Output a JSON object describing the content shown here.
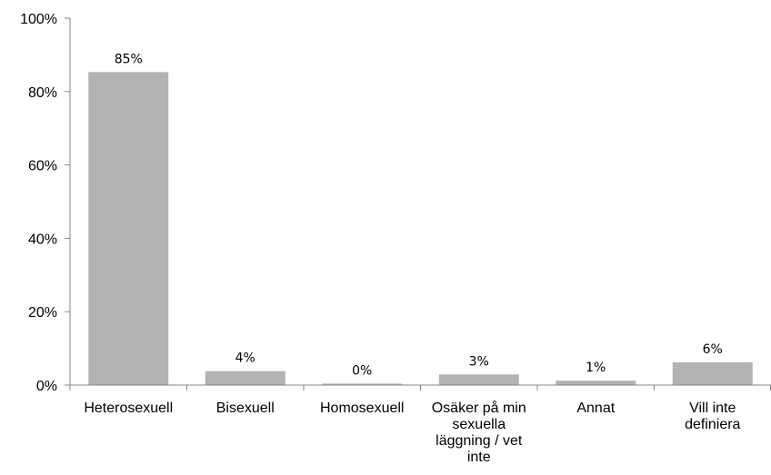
{
  "chart_data": {
    "type": "bar",
    "categories": [
      [
        "Heterosexuell"
      ],
      [
        "Bisexuell"
      ],
      [
        "Homosexuell"
      ],
      [
        "Osäker på min",
        "sexuella",
        "läggning / vet",
        "inte"
      ],
      [
        "Annat"
      ],
      [
        "Vill inte",
        "definiera"
      ]
    ],
    "values": [
      85.3,
      3.8,
      0.4,
      2.9,
      1.2,
      6.2
    ],
    "data_labels": [
      "85%",
      "4%",
      "0%",
      "3%",
      "1%",
      "6%"
    ],
    "ylim": [
      0,
      100
    ],
    "yticks": [
      0,
      20,
      40,
      60,
      80,
      100
    ],
    "ytick_labels": [
      "0%",
      "20%",
      "40%",
      "60%",
      "80%",
      "100%"
    ],
    "bar_color": "#b3b3b3",
    "axis_color": "#868686",
    "grid": false,
    "legend": "none",
    "title": "",
    "xlabel": "",
    "ylabel": ""
  }
}
